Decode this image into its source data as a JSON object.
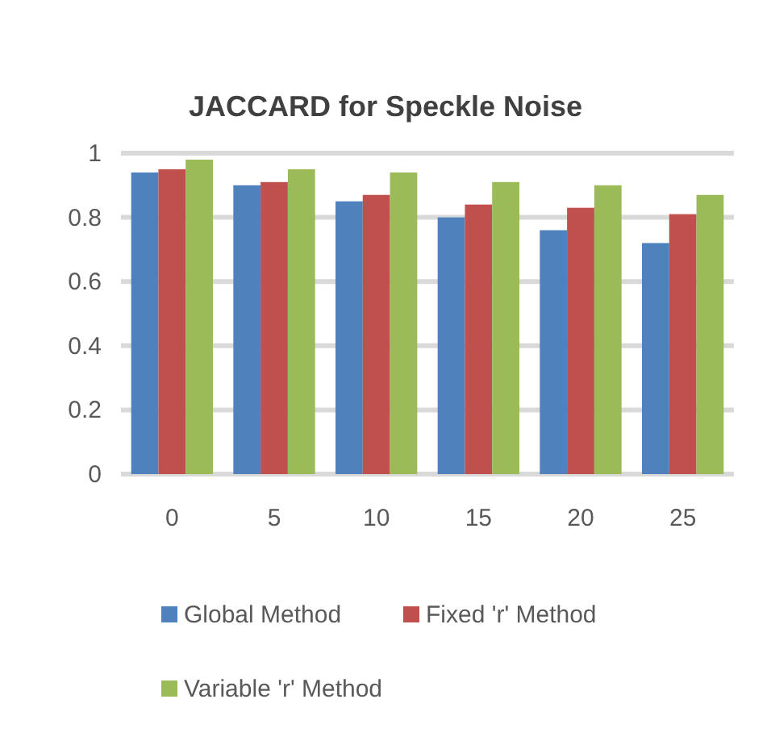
{
  "chart_data": {
    "type": "bar",
    "title": "JACCARD  for Speckle  Noise",
    "categories": [
      "0",
      "5",
      "10",
      "15",
      "20",
      "25"
    ],
    "series": [
      {
        "name": "Global Method",
        "color": "#4f81bd",
        "values": [
          0.94,
          0.9,
          0.85,
          0.8,
          0.76,
          0.72
        ]
      },
      {
        "name": "Fixed 'r' Method",
        "color": "#c0504d",
        "values": [
          0.95,
          0.91,
          0.87,
          0.84,
          0.83,
          0.81
        ]
      },
      {
        "name": "Variable 'r' Method",
        "color": "#9bbb59",
        "values": [
          0.98,
          0.95,
          0.94,
          0.91,
          0.9,
          0.87
        ]
      }
    ],
    "ylim": [
      0,
      1
    ],
    "yticks": [
      0,
      0.2,
      0.4,
      0.6,
      0.8,
      1
    ],
    "grid": "y",
    "legend": "bottom"
  }
}
